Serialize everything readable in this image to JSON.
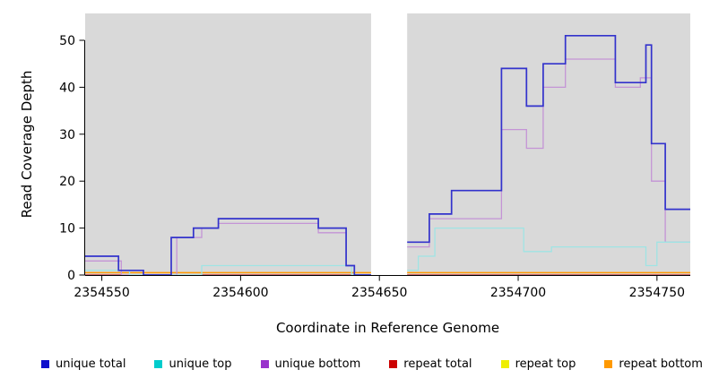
{
  "figure": {
    "background": "#FFFFFF",
    "plot_background": "#D9D9D9",
    "axis_color": "#000000",
    "gap_color": "#FFFFFF"
  },
  "chart_data": {
    "type": "line",
    "subtype": "step-coverage",
    "title": "",
    "xlabel": "Coordinate in Reference Genome",
    "ylabel": "Read Coverage Depth",
    "xlim": [
      2354544,
      2354762
    ],
    "ylim": [
      0,
      56
    ],
    "x_ticks": [
      2354550,
      2354600,
      2354650,
      2354700,
      2354750
    ],
    "y_ticks": [
      0,
      10,
      20,
      30,
      40,
      50
    ],
    "grid": false,
    "legend_position": "bottom",
    "gap": {
      "x_start": 2354647,
      "x_end": 2354660
    },
    "series": [
      {
        "name": "unique total",
        "legend_color": "#0F0FCC",
        "line_color": "#3333CC",
        "width": 1.7,
        "segments": [
          {
            "points": [
              [
                2354544,
                4
              ],
              [
                2354556,
                1
              ],
              [
                2354565,
                0
              ],
              [
                2354575,
                8
              ],
              [
                2354583,
                10
              ],
              [
                2354592,
                12
              ],
              [
                2354628,
                10
              ],
              [
                2354638,
                2
              ],
              [
                2354641,
                0
              ]
            ],
            "end": 2354647
          },
          {
            "points": [
              [
                2354660,
                7
              ],
              [
                2354668,
                13
              ],
              [
                2354676,
                18
              ],
              [
                2354694,
                44
              ],
              [
                2354703,
                36
              ],
              [
                2354709,
                45
              ],
              [
                2354717,
                51
              ],
              [
                2354735,
                41
              ],
              [
                2354746,
                49
              ],
              [
                2354748,
                28
              ],
              [
                2354753,
                14
              ]
            ],
            "end": 2354762
          }
        ]
      },
      {
        "name": "unique top",
        "legend_color": "#00CCCC",
        "line_color": "#9FE4E4",
        "width": 1.3,
        "segments": [
          {
            "points": [
              [
                2354544,
                1
              ],
              [
                2354560,
                0
              ],
              [
                2354586,
                2
              ],
              [
                2354640,
                0
              ]
            ],
            "end": 2354647
          },
          {
            "points": [
              [
                2354660,
                1
              ],
              [
                2354664,
                4
              ],
              [
                2354670,
                10
              ],
              [
                2354702,
                5
              ],
              [
                2354712,
                6
              ],
              [
                2354746,
                2
              ],
              [
                2354750,
                7
              ]
            ],
            "end": 2354762
          }
        ]
      },
      {
        "name": "unique bottom",
        "legend_color": "#9933CC",
        "line_color": "#C494D6",
        "width": 1.3,
        "segments": [
          {
            "points": [
              [
                2354544,
                3
              ],
              [
                2354557,
                0
              ],
              [
                2354577,
                8
              ],
              [
                2354586,
                10
              ],
              [
                2354592,
                11
              ],
              [
                2354628,
                9
              ],
              [
                2354638,
                2
              ],
              [
                2354641,
                0
              ]
            ],
            "end": 2354647
          },
          {
            "points": [
              [
                2354660,
                6
              ],
              [
                2354668,
                12
              ],
              [
                2354694,
                31
              ],
              [
                2354703,
                27
              ],
              [
                2354709,
                40
              ],
              [
                2354717,
                46
              ],
              [
                2354735,
                40
              ],
              [
                2354744,
                42
              ],
              [
                2354748,
                20
              ],
              [
                2354753,
                7
              ]
            ],
            "end": 2354762
          }
        ]
      },
      {
        "name": "repeat total",
        "legend_color": "#CC0000",
        "line_color": "#CC0000",
        "width": 1.0,
        "segments": [
          {
            "points": [
              [
                2354544,
                0
              ]
            ],
            "end": 2354647
          },
          {
            "points": [
              [
                2354660,
                0
              ]
            ],
            "end": 2354762
          }
        ]
      },
      {
        "name": "repeat top",
        "legend_color": "#EEEE00",
        "line_color": "#EEEE00",
        "width": 1.0,
        "segments": [
          {
            "points": [
              [
                2354544,
                0
              ]
            ],
            "end": 2354647
          },
          {
            "points": [
              [
                2354660,
                0
              ]
            ],
            "end": 2354762
          }
        ]
      },
      {
        "name": "repeat bottom",
        "legend_color": "#FF9900",
        "line_color": "#FF9900",
        "width": 1.5,
        "segments": [
          {
            "points": [
              [
                2354544,
                0.5
              ]
            ],
            "end": 2354647
          },
          {
            "points": [
              [
                2354660,
                0.5
              ]
            ],
            "end": 2354762
          }
        ]
      }
    ]
  }
}
